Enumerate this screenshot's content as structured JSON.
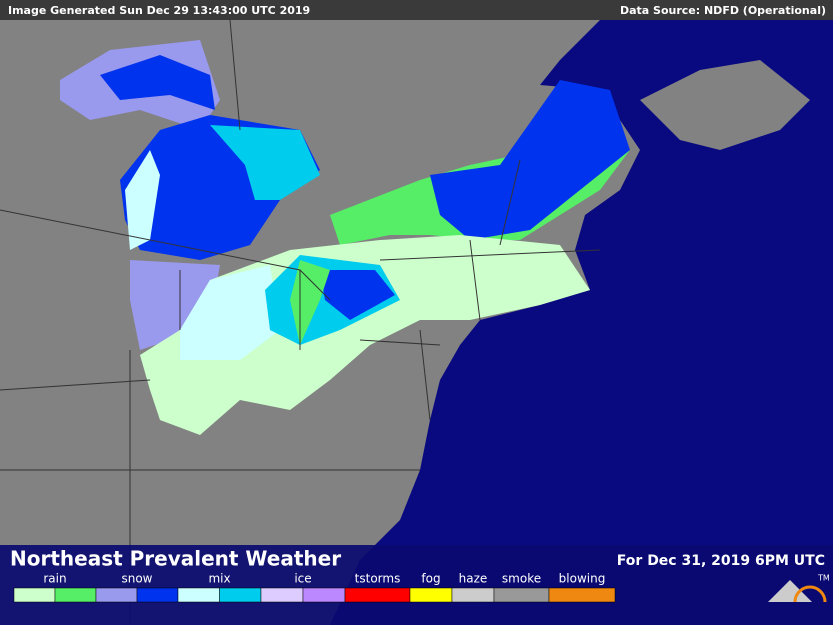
{
  "header": {
    "generated": "Image Generated Sun Dec 29 13:43:00 UTC 2019",
    "source": "Data Source: NDFD (Operational)"
  },
  "footer": {
    "title": "Northeast Prevalent Weather",
    "valid": "For Dec 31, 2019  6PM UTC"
  },
  "legend": [
    {
      "label": "rain",
      "colors": [
        "#ccffcc",
        "#55ee66"
      ]
    },
    {
      "label": "snow",
      "colors": [
        "#9999ee",
        "#0033ee"
      ]
    },
    {
      "label": "mix",
      "colors": [
        "#ccffff",
        "#00ccee"
      ]
    },
    {
      "label": "ice",
      "colors": [
        "#ddccff",
        "#bb88ff"
      ]
    },
    {
      "label": "tstorms",
      "colors": [
        "#ff0000"
      ]
    },
    {
      "label": "fog",
      "colors": [
        "#ffff00"
      ]
    },
    {
      "label": "haze",
      "colors": [
        "#cccccc"
      ]
    },
    {
      "label": "smoke",
      "colors": [
        "#999999"
      ]
    },
    {
      "label": "blowing",
      "colors": [
        "#ee8811"
      ]
    }
  ],
  "logo": "TM"
}
